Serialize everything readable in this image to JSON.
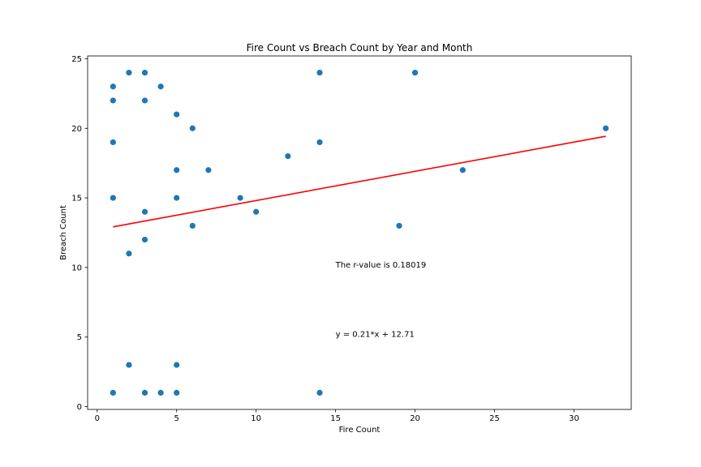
{
  "chart_data": {
    "type": "scatter",
    "title": "Fire Count vs Breach Count by Year and Month",
    "xlabel": "Fire Count",
    "ylabel": "Breach Count",
    "xlim": [
      -0.6,
      33.6
    ],
    "ylim": [
      -0.2,
      25.2
    ],
    "xticks": [
      0,
      5,
      10,
      15,
      20,
      25,
      30
    ],
    "yticks": [
      0,
      5,
      10,
      15,
      20,
      25
    ],
    "grid": false,
    "points": [
      {
        "x": 1,
        "y": 23
      },
      {
        "x": 1,
        "y": 22
      },
      {
        "x": 1,
        "y": 19
      },
      {
        "x": 1,
        "y": 15
      },
      {
        "x": 1,
        "y": 1
      },
      {
        "x": 2,
        "y": 24
      },
      {
        "x": 2,
        "y": 11
      },
      {
        "x": 2,
        "y": 3
      },
      {
        "x": 3,
        "y": 24
      },
      {
        "x": 3,
        "y": 22
      },
      {
        "x": 3,
        "y": 14
      },
      {
        "x": 3,
        "y": 12
      },
      {
        "x": 3,
        "y": 1
      },
      {
        "x": 4,
        "y": 23
      },
      {
        "x": 4,
        "y": 1
      },
      {
        "x": 5,
        "y": 21
      },
      {
        "x": 5,
        "y": 17
      },
      {
        "x": 5,
        "y": 15
      },
      {
        "x": 5,
        "y": 3
      },
      {
        "x": 5,
        "y": 1
      },
      {
        "x": 6,
        "y": 20
      },
      {
        "x": 6,
        "y": 13
      },
      {
        "x": 7,
        "y": 17
      },
      {
        "x": 9,
        "y": 15
      },
      {
        "x": 10,
        "y": 14
      },
      {
        "x": 12,
        "y": 18
      },
      {
        "x": 14,
        "y": 24
      },
      {
        "x": 14,
        "y": 19
      },
      {
        "x": 14,
        "y": 1
      },
      {
        "x": 19,
        "y": 13
      },
      {
        "x": 20,
        "y": 24
      },
      {
        "x": 23,
        "y": 17
      },
      {
        "x": 32,
        "y": 20
      }
    ],
    "regression": {
      "slope": 0.21,
      "intercept": 12.71,
      "x_start": 1,
      "x_end": 32
    },
    "annotations": [
      {
        "text": "The r-value is 0.18019",
        "x": 15,
        "y": 10
      },
      {
        "text": "y = 0.21*x + 12.71",
        "x": 15,
        "y": 5
      }
    ],
    "colors": {
      "points": "#1f77b4",
      "regression_line": "#ff0000"
    }
  }
}
